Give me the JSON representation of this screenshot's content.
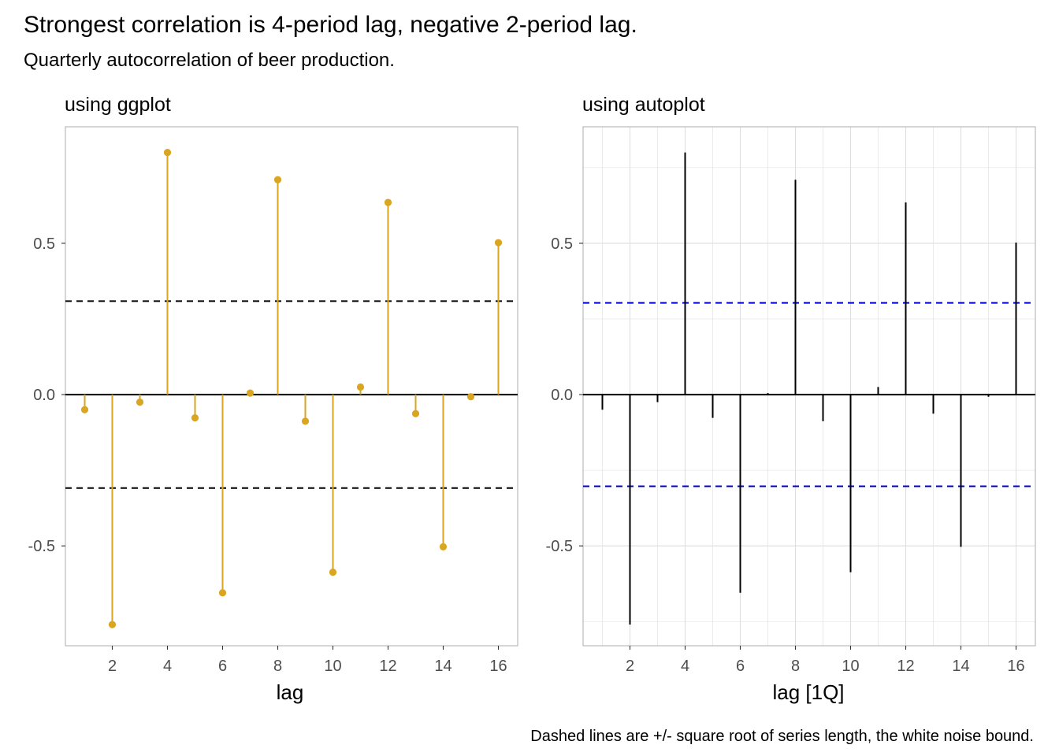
{
  "title": "Strongest correlation is 4-period lag, negative 2-period lag.",
  "subtitle": "Quarterly autocorrelation of beer production.",
  "caption": "Dashed lines are +/- square root of series length, the white noise bound.",
  "colors": {
    "ggplot_stem": "#DAA520",
    "autoplot_stem": "#000000",
    "ggplot_bound": "#000000",
    "autoplot_bound": "#0000CC",
    "grid": "#DEDEDE",
    "panel_border": "#B3B3B3"
  },
  "chart_data": [
    {
      "type": "lollipop",
      "panel_title": "using ggplot",
      "xlabel": "lag",
      "ylabel": "",
      "x": [
        1,
        2,
        3,
        4,
        5,
        6,
        7,
        8,
        9,
        10,
        11,
        12,
        13,
        14,
        15,
        16
      ],
      "values": [
        -0.05,
        -0.76,
        -0.025,
        0.8,
        -0.077,
        -0.655,
        0.005,
        0.71,
        -0.088,
        -0.587,
        0.025,
        0.635,
        -0.063,
        -0.503,
        -0.007,
        0.502
      ],
      "bounds": [
        0.309,
        -0.309
      ],
      "xticks": [
        2,
        4,
        6,
        8,
        10,
        12,
        14,
        16
      ],
      "yticks": [
        -0.5,
        0.0,
        0.5
      ],
      "ytick_labels": [
        "-0.5",
        "0.0",
        "0.5"
      ],
      "xlim": [
        0.3,
        16.7
      ],
      "ylim": [
        -0.83,
        0.885
      ],
      "grid": false
    },
    {
      "type": "bar",
      "panel_title": "using autoplot",
      "xlabel": "lag [1Q]",
      "ylabel": "",
      "x": [
        1,
        2,
        3,
        4,
        5,
        6,
        7,
        8,
        9,
        10,
        11,
        12,
        13,
        14,
        15,
        16
      ],
      "values": [
        -0.05,
        -0.76,
        -0.025,
        0.8,
        -0.077,
        -0.655,
        0.005,
        0.71,
        -0.088,
        -0.587,
        0.025,
        0.635,
        -0.063,
        -0.503,
        -0.007,
        0.502
      ],
      "bounds": [
        0.303,
        -0.303
      ],
      "xticks": [
        2,
        4,
        6,
        8,
        10,
        12,
        14,
        16
      ],
      "yticks": [
        -0.5,
        0.0,
        0.5
      ],
      "ytick_labels": [
        "-0.5",
        "0.0",
        "0.5"
      ],
      "xlim": [
        0.3,
        16.7
      ],
      "ylim": [
        -0.83,
        0.885
      ],
      "grid": true
    }
  ]
}
